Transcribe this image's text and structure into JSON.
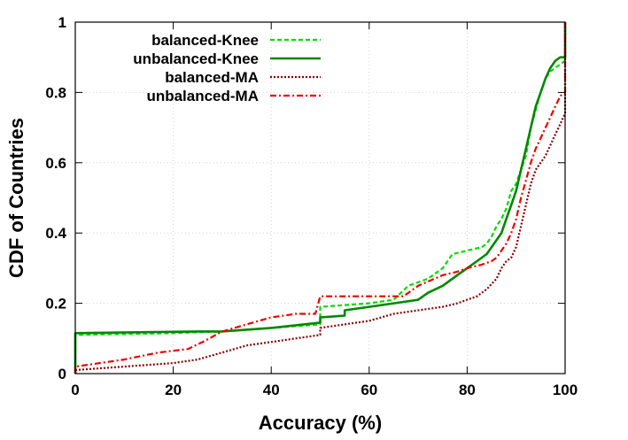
{
  "chart_data": {
    "type": "line",
    "xlabel": "Accuracy (%)",
    "ylabel": "CDF of Countries",
    "xlim": [
      0,
      100
    ],
    "ylim": [
      0,
      1
    ],
    "x_ticks": [
      "0",
      "20",
      "40",
      "60",
      "80",
      "100"
    ],
    "y_ticks": [
      "0",
      "0.2",
      "0.4",
      "0.6",
      "0.8",
      "1"
    ],
    "grid": true,
    "legend_position": "top-left",
    "series": [
      {
        "name": "balanced-Knee",
        "color": "#00dd00",
        "dash": "dashed",
        "points": [
          [
            0,
            0
          ],
          [
            0,
            0.11
          ],
          [
            20,
            0.115
          ],
          [
            30,
            0.12
          ],
          [
            40,
            0.13
          ],
          [
            50,
            0.14
          ],
          [
            50,
            0.19
          ],
          [
            60,
            0.2
          ],
          [
            65,
            0.21
          ],
          [
            68,
            0.25
          ],
          [
            72,
            0.27
          ],
          [
            75,
            0.3
          ],
          [
            77,
            0.34
          ],
          [
            80,
            0.35
          ],
          [
            83,
            0.36
          ],
          [
            84,
            0.37
          ],
          [
            85,
            0.39
          ],
          [
            86,
            0.42
          ],
          [
            87,
            0.44
          ],
          [
            88,
            0.47
          ],
          [
            89,
            0.52
          ],
          [
            90,
            0.54
          ],
          [
            91,
            0.58
          ],
          [
            92,
            0.62
          ],
          [
            93,
            0.7
          ],
          [
            94,
            0.75
          ],
          [
            95,
            0.8
          ],
          [
            96,
            0.84
          ],
          [
            97,
            0.86
          ],
          [
            98,
            0.87
          ],
          [
            99,
            0.88
          ],
          [
            100,
            0.89
          ]
        ]
      },
      {
        "name": "unbalanced-Knee",
        "color": "#008800",
        "dash": "solid",
        "points": [
          [
            0,
            0
          ],
          [
            0,
            0.115
          ],
          [
            25,
            0.12
          ],
          [
            30,
            0.12
          ],
          [
            40,
            0.13
          ],
          [
            50,
            0.145
          ],
          [
            50,
            0.16
          ],
          [
            55,
            0.165
          ],
          [
            55,
            0.18
          ],
          [
            60,
            0.19
          ],
          [
            65,
            0.2
          ],
          [
            70,
            0.21
          ],
          [
            72,
            0.23
          ],
          [
            75,
            0.25
          ],
          [
            78,
            0.28
          ],
          [
            80,
            0.3
          ],
          [
            82,
            0.32
          ],
          [
            84,
            0.34
          ],
          [
            85,
            0.36
          ],
          [
            86,
            0.38
          ],
          [
            87,
            0.4
          ],
          [
            88,
            0.44
          ],
          [
            89,
            0.48
          ],
          [
            90,
            0.52
          ],
          [
            91,
            0.58
          ],
          [
            92,
            0.64
          ],
          [
            93,
            0.7
          ],
          [
            94,
            0.76
          ],
          [
            95,
            0.8
          ],
          [
            96,
            0.84
          ],
          [
            97,
            0.87
          ],
          [
            98,
            0.89
          ],
          [
            99,
            0.9
          ],
          [
            100,
            0.9
          ],
          [
            100,
            1.0
          ]
        ]
      },
      {
        "name": "balanced-MA",
        "color": "#880000",
        "dash": "dotted",
        "points": [
          [
            0,
            0
          ],
          [
            0,
            0.01
          ],
          [
            10,
            0.02
          ],
          [
            20,
            0.03
          ],
          [
            25,
            0.04
          ],
          [
            30,
            0.06
          ],
          [
            35,
            0.08
          ],
          [
            40,
            0.09
          ],
          [
            45,
            0.1
          ],
          [
            50,
            0.11
          ],
          [
            50,
            0.13
          ],
          [
            55,
            0.14
          ],
          [
            60,
            0.15
          ],
          [
            65,
            0.17
          ],
          [
            70,
            0.18
          ],
          [
            75,
            0.19
          ],
          [
            78,
            0.2
          ],
          [
            80,
            0.21
          ],
          [
            82,
            0.22
          ],
          [
            84,
            0.24
          ],
          [
            86,
            0.27
          ],
          [
            87,
            0.3
          ],
          [
            88,
            0.32
          ],
          [
            89,
            0.33
          ],
          [
            90,
            0.36
          ],
          [
            91,
            0.42
          ],
          [
            92,
            0.48
          ],
          [
            93,
            0.54
          ],
          [
            94,
            0.58
          ],
          [
            95,
            0.6
          ],
          [
            96,
            0.62
          ],
          [
            97,
            0.65
          ],
          [
            98,
            0.68
          ],
          [
            99,
            0.71
          ],
          [
            100,
            0.74
          ],
          [
            100,
            1.0
          ]
        ]
      },
      {
        "name": "unbalanced-MA",
        "color": "#ee0000",
        "dash": "dashdot",
        "points": [
          [
            0,
            0
          ],
          [
            0,
            0.02
          ],
          [
            10,
            0.04
          ],
          [
            17,
            0.06
          ],
          [
            23,
            0.07
          ],
          [
            26,
            0.09
          ],
          [
            30,
            0.12
          ],
          [
            35,
            0.14
          ],
          [
            40,
            0.16
          ],
          [
            45,
            0.17
          ],
          [
            49,
            0.17
          ],
          [
            50,
            0.22
          ],
          [
            55,
            0.22
          ],
          [
            60,
            0.22
          ],
          [
            67,
            0.22
          ],
          [
            70,
            0.25
          ],
          [
            75,
            0.28
          ],
          [
            78,
            0.29
          ],
          [
            80,
            0.3
          ],
          [
            83,
            0.31
          ],
          [
            85,
            0.32
          ],
          [
            86,
            0.33
          ],
          [
            87,
            0.35
          ],
          [
            88,
            0.37
          ],
          [
            89,
            0.4
          ],
          [
            90,
            0.44
          ],
          [
            91,
            0.5
          ],
          [
            92,
            0.55
          ],
          [
            93,
            0.6
          ],
          [
            94,
            0.64
          ],
          [
            95,
            0.67
          ],
          [
            96,
            0.7
          ],
          [
            97,
            0.73
          ],
          [
            98,
            0.76
          ],
          [
            99,
            0.79
          ],
          [
            100,
            0.8
          ],
          [
            100,
            1.0
          ]
        ]
      }
    ]
  }
}
